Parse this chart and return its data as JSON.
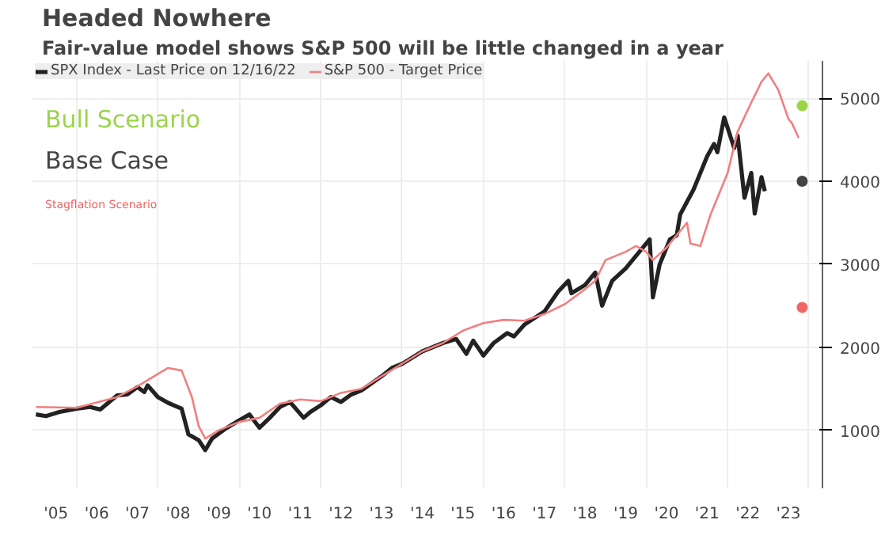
{
  "chart_data": {
    "type": "line",
    "title": "Headed Nowhere",
    "subtitle": "Fair-value model shows S&P 500 will be little changed in a year",
    "xlim": [
      "2004-12",
      "2024-05"
    ],
    "ylim": [
      300,
      5450
    ],
    "xticks": [
      {
        "value": "2005-07",
        "label": "'05"
      },
      {
        "value": "2006-07",
        "label": "'06"
      },
      {
        "value": "2007-07",
        "label": "'07"
      },
      {
        "value": "2008-07",
        "label": "'08"
      },
      {
        "value": "2009-07",
        "label": "'09"
      },
      {
        "value": "2010-07",
        "label": "'10"
      },
      {
        "value": "2011-07",
        "label": "'11"
      },
      {
        "value": "2012-07",
        "label": "'12"
      },
      {
        "value": "2013-07",
        "label": "'13"
      },
      {
        "value": "2014-07",
        "label": "'14"
      },
      {
        "value": "2015-07",
        "label": "'15"
      },
      {
        "value": "2016-07",
        "label": "'16"
      },
      {
        "value": "2017-07",
        "label": "'17"
      },
      {
        "value": "2018-07",
        "label": "'18"
      },
      {
        "value": "2019-07",
        "label": "'19"
      },
      {
        "value": "2020-07",
        "label": "'20"
      },
      {
        "value": "2021-07",
        "label": "'21"
      },
      {
        "value": "2022-07",
        "label": "'22"
      },
      {
        "value": "2023-07",
        "label": "'23"
      },
      {
        "value": "2006-01",
        "label": null
      },
      {
        "value": "2008-01",
        "label": null
      },
      {
        "value": "2010-01",
        "label": null
      },
      {
        "value": "2012-01",
        "label": null
      },
      {
        "value": "2014-01",
        "label": null
      },
      {
        "value": "2016-01",
        "label": null
      },
      {
        "value": "2018-01",
        "label": null
      },
      {
        "value": "2020-01",
        "label": null
      },
      {
        "value": "2022-01",
        "label": null
      },
      {
        "value": "2024-01",
        "label": null
      }
    ],
    "yticks": [
      1000,
      2000,
      3000,
      4000,
      5000
    ],
    "grid": true,
    "legend": "top left",
    "series": [
      {
        "name": "SPX Index - Last Price on 12/16/22",
        "color": "#222222",
        "x": [
          "2005-01",
          "2005-04",
          "2005-08",
          "2006-01",
          "2006-05",
          "2006-08",
          "2007-01",
          "2007-04",
          "2007-07",
          "2007-09",
          "2007-10",
          "2008-01",
          "2008-04",
          "2008-08",
          "2008-10",
          "2009-01",
          "2009-03",
          "2009-05",
          "2009-09",
          "2010-01",
          "2010-04",
          "2010-07",
          "2010-10",
          "2011-01",
          "2011-04",
          "2011-08",
          "2011-10",
          "2012-01",
          "2012-04",
          "2012-07",
          "2012-10",
          "2013-01",
          "2013-07",
          "2013-10",
          "2014-01",
          "2014-07",
          "2014-10",
          "2015-01",
          "2015-05",
          "2015-08",
          "2015-10",
          "2016-01",
          "2016-04",
          "2016-08",
          "2016-10",
          "2017-01",
          "2017-07",
          "2017-11",
          "2018-02",
          "2018-03",
          "2018-07",
          "2018-10",
          "2018-12",
          "2019-03",
          "2019-07",
          "2019-10",
          "2020-02",
          "2020-03",
          "2020-05",
          "2020-08",
          "2020-10",
          "2020-11",
          "2021-03",
          "2021-07",
          "2021-09",
          "2021-10",
          "2021-12",
          "2022-03",
          "2022-04",
          "2022-06",
          "2022-08",
          "2022-09",
          "2022-11",
          "2022-12"
        ],
        "values": [
          1190,
          1170,
          1220,
          1260,
          1280,
          1250,
          1420,
          1430,
          1520,
          1460,
          1540,
          1400,
          1330,
          1260,
          950,
          880,
          760,
          900,
          1020,
          1120,
          1190,
          1030,
          1150,
          1280,
          1340,
          1150,
          1220,
          1300,
          1400,
          1340,
          1430,
          1480,
          1650,
          1750,
          1800,
          1950,
          2000,
          2050,
          2100,
          1920,
          2080,
          1900,
          2050,
          2170,
          2130,
          2270,
          2430,
          2670,
          2800,
          2650,
          2750,
          2900,
          2500,
          2800,
          2950,
          3100,
          3300,
          2600,
          3000,
          3300,
          3350,
          3600,
          3900,
          4300,
          4450,
          4350,
          4770,
          4400,
          4550,
          3800,
          4100,
          3610,
          4050,
          3880
        ]
      },
      {
        "name": "S&P 500 - Target Price",
        "color": "#f08080",
        "x": [
          "2005-01",
          "2006-01",
          "2007-01",
          "2007-07",
          "2008-04",
          "2008-08",
          "2008-11",
          "2009-01",
          "2009-03",
          "2009-07",
          "2010-01",
          "2010-07",
          "2011-01",
          "2011-07",
          "2012-01",
          "2012-07",
          "2013-01",
          "2013-07",
          "2014-01",
          "2014-07",
          "2015-01",
          "2015-07",
          "2016-01",
          "2016-07",
          "2017-01",
          "2017-07",
          "2018-01",
          "2018-07",
          "2018-10",
          "2019-01",
          "2019-07",
          "2019-10",
          "2020-01",
          "2020-03",
          "2020-07",
          "2020-10",
          "2021-01",
          "2021-02",
          "2021-05",
          "2021-08",
          "2022-01",
          "2022-04",
          "2022-08",
          "2022-11",
          "2023-01",
          "2023-04",
          "2023-07",
          "2023-08",
          "2023-10"
        ],
        "values": [
          1280,
          1270,
          1400,
          1530,
          1750,
          1720,
          1400,
          1050,
          900,
          1000,
          1100,
          1150,
          1320,
          1370,
          1350,
          1450,
          1500,
          1650,
          1800,
          1950,
          2050,
          2200,
          2290,
          2330,
          2320,
          2400,
          2520,
          2700,
          2800,
          3050,
          3150,
          3220,
          3150,
          3050,
          3200,
          3350,
          3500,
          3250,
          3220,
          3600,
          4100,
          4600,
          4950,
          5200,
          5300,
          5100,
          4750,
          4700,
          4520
        ]
      },
      {
        "name": "Bull Scenario",
        "type": "scatter",
        "color": "#9bd44b",
        "x": [
          "2023-11"
        ],
        "values": [
          4910
        ]
      },
      {
        "name": "Base Case",
        "type": "scatter",
        "color": "#444444",
        "x": [
          "2023-11"
        ],
        "values": [
          4000
        ]
      },
      {
        "name": "Stagflation Scenario",
        "type": "scatter",
        "color": "#ee6666",
        "x": [
          "2023-11"
        ],
        "values": [
          2480
        ]
      }
    ]
  }
}
